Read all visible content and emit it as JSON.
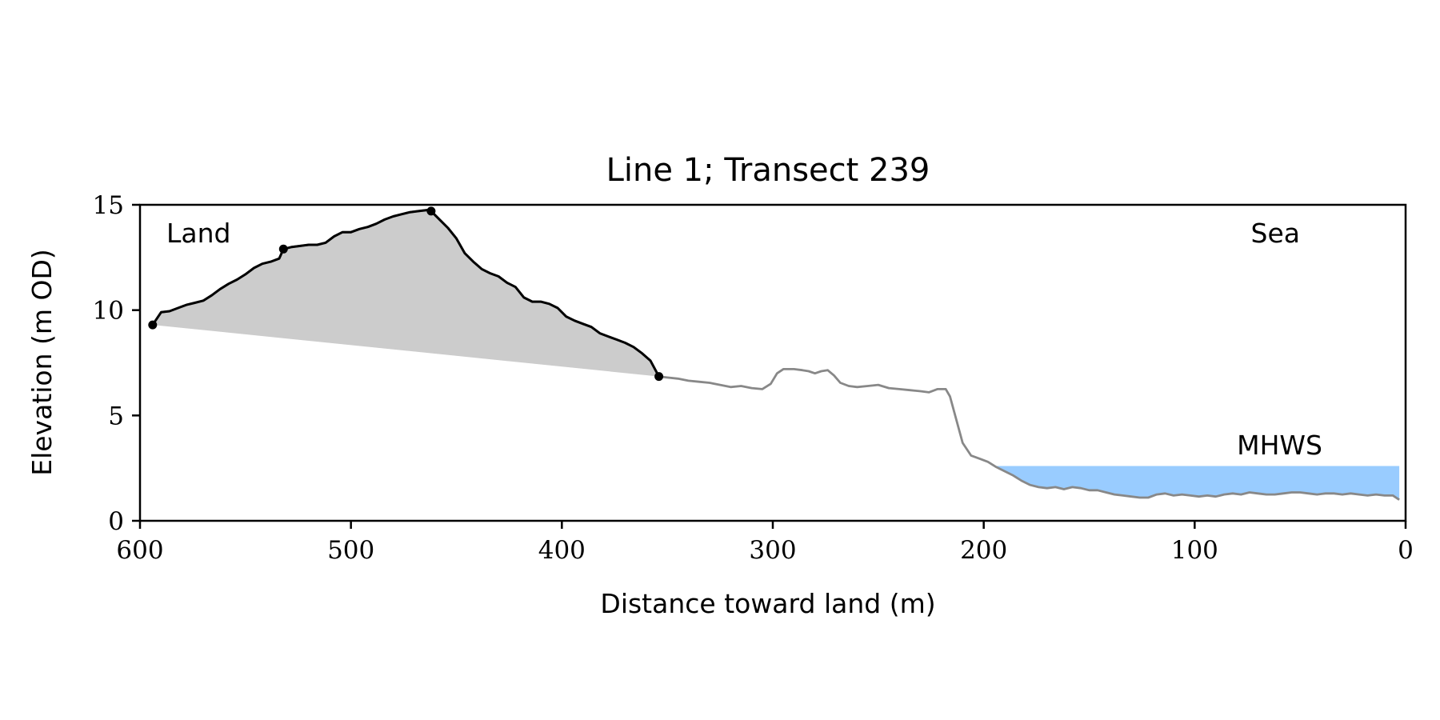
{
  "chart_data": {
    "type": "line",
    "title": "Line 1; Transect 239",
    "xlabel": "Distance toward land (m)",
    "ylabel": "Elevation (m OD)",
    "xlim": [
      600,
      0
    ],
    "ylim": [
      0,
      15
    ],
    "x_ticks": [
      "600",
      "500",
      "400",
      "300",
      "200",
      "100",
      "0"
    ],
    "y_ticks": [
      "0",
      "5",
      "10",
      "15"
    ],
    "grid": false,
    "annotations": {
      "land": "Land",
      "sea": "Sea",
      "mhws": "MHWS"
    },
    "mhws_level": 2.6,
    "mhws_x_range": [
      195,
      3
    ],
    "colors": {
      "profile": "#888888",
      "highlight": "#000000",
      "fill": "#cccccc",
      "mhws_fill": "#99ccff",
      "mhws_text": "#6699cc"
    },
    "highlighted_segment_x_range": [
      594,
      354
    ],
    "key_points": [
      {
        "x": 594,
        "y": 9.3
      },
      {
        "x": 532,
        "y": 12.9
      },
      {
        "x": 462,
        "y": 14.7
      },
      {
        "x": 354,
        "y": 6.85
      }
    ],
    "series": [
      {
        "values": [
          [
            594,
            9.3
          ],
          [
            590,
            9.9
          ],
          [
            586,
            9.95
          ],
          [
            582,
            10.1
          ],
          [
            578,
            10.25
          ],
          [
            574,
            10.35
          ],
          [
            570,
            10.45
          ],
          [
            566,
            10.7
          ],
          [
            562,
            11.0
          ],
          [
            558,
            11.25
          ],
          [
            554,
            11.45
          ],
          [
            550,
            11.7
          ],
          [
            546,
            12.0
          ],
          [
            542,
            12.2
          ],
          [
            538,
            12.3
          ],
          [
            534,
            12.45
          ],
          [
            532,
            12.9
          ],
          [
            528,
            13.0
          ],
          [
            524,
            13.05
          ],
          [
            520,
            13.1
          ],
          [
            516,
            13.1
          ],
          [
            512,
            13.2
          ],
          [
            508,
            13.5
          ],
          [
            504,
            13.7
          ],
          [
            500,
            13.7
          ],
          [
            496,
            13.85
          ],
          [
            492,
            13.95
          ],
          [
            488,
            14.1
          ],
          [
            484,
            14.3
          ],
          [
            480,
            14.45
          ],
          [
            476,
            14.55
          ],
          [
            472,
            14.65
          ],
          [
            468,
            14.7
          ],
          [
            464,
            14.75
          ],
          [
            462,
            14.7
          ],
          [
            458,
            14.3
          ],
          [
            454,
            13.9
          ],
          [
            450,
            13.4
          ],
          [
            446,
            12.7
          ],
          [
            442,
            12.3
          ],
          [
            438,
            11.95
          ],
          [
            434,
            11.75
          ],
          [
            430,
            11.6
          ],
          [
            426,
            11.3
          ],
          [
            422,
            11.1
          ],
          [
            418,
            10.6
          ],
          [
            414,
            10.4
          ],
          [
            410,
            10.4
          ],
          [
            406,
            10.3
          ],
          [
            402,
            10.1
          ],
          [
            398,
            9.7
          ],
          [
            394,
            9.5
          ],
          [
            390,
            9.35
          ],
          [
            386,
            9.2
          ],
          [
            382,
            8.9
          ],
          [
            378,
            8.75
          ],
          [
            374,
            8.6
          ],
          [
            370,
            8.45
          ],
          [
            366,
            8.25
          ],
          [
            362,
            7.95
          ],
          [
            358,
            7.6
          ],
          [
            354,
            6.85
          ],
          [
            350,
            6.8
          ],
          [
            345,
            6.75
          ],
          [
            340,
            6.65
          ],
          [
            335,
            6.6
          ],
          [
            330,
            6.55
          ],
          [
            325,
            6.45
          ],
          [
            320,
            6.35
          ],
          [
            315,
            6.4
          ],
          [
            310,
            6.3
          ],
          [
            305,
            6.25
          ],
          [
            301,
            6.5
          ],
          [
            298,
            7.0
          ],
          [
            295,
            7.2
          ],
          [
            290,
            7.2
          ],
          [
            286,
            7.15
          ],
          [
            283,
            7.1
          ],
          [
            280,
            7.0
          ],
          [
            277,
            7.1
          ],
          [
            274,
            7.15
          ],
          [
            271,
            6.9
          ],
          [
            268,
            6.55
          ],
          [
            264,
            6.4
          ],
          [
            260,
            6.35
          ],
          [
            255,
            6.4
          ],
          [
            250,
            6.45
          ],
          [
            245,
            6.3
          ],
          [
            240,
            6.25
          ],
          [
            235,
            6.2
          ],
          [
            230,
            6.15
          ],
          [
            226,
            6.1
          ],
          [
            222,
            6.25
          ],
          [
            218,
            6.25
          ],
          [
            216,
            5.9
          ],
          [
            213,
            4.8
          ],
          [
            210,
            3.7
          ],
          [
            206,
            3.1
          ],
          [
            202,
            2.95
          ],
          [
            198,
            2.8
          ],
          [
            194,
            2.55
          ],
          [
            190,
            2.35
          ],
          [
            186,
            2.15
          ],
          [
            182,
            1.9
          ],
          [
            178,
            1.7
          ],
          [
            174,
            1.6
          ],
          [
            170,
            1.55
          ],
          [
            166,
            1.6
          ],
          [
            162,
            1.5
          ],
          [
            158,
            1.6
          ],
          [
            154,
            1.55
          ],
          [
            150,
            1.45
          ],
          [
            146,
            1.45
          ],
          [
            142,
            1.35
          ],
          [
            138,
            1.25
          ],
          [
            134,
            1.2
          ],
          [
            130,
            1.15
          ],
          [
            126,
            1.1
          ],
          [
            122,
            1.1
          ],
          [
            118,
            1.25
          ],
          [
            114,
            1.3
          ],
          [
            110,
            1.2
          ],
          [
            106,
            1.25
          ],
          [
            102,
            1.2
          ],
          [
            98,
            1.15
          ],
          [
            94,
            1.2
          ],
          [
            90,
            1.15
          ],
          [
            86,
            1.25
          ],
          [
            82,
            1.3
          ],
          [
            78,
            1.25
          ],
          [
            74,
            1.35
          ],
          [
            70,
            1.3
          ],
          [
            66,
            1.25
          ],
          [
            62,
            1.25
          ],
          [
            58,
            1.3
          ],
          [
            54,
            1.35
          ],
          [
            50,
            1.35
          ],
          [
            46,
            1.3
          ],
          [
            42,
            1.25
          ],
          [
            38,
            1.3
          ],
          [
            34,
            1.3
          ],
          [
            30,
            1.25
          ],
          [
            26,
            1.3
          ],
          [
            22,
            1.25
          ],
          [
            18,
            1.2
          ],
          [
            14,
            1.25
          ],
          [
            10,
            1.2
          ],
          [
            6,
            1.2
          ],
          [
            3,
            1.0
          ]
        ]
      }
    ]
  }
}
